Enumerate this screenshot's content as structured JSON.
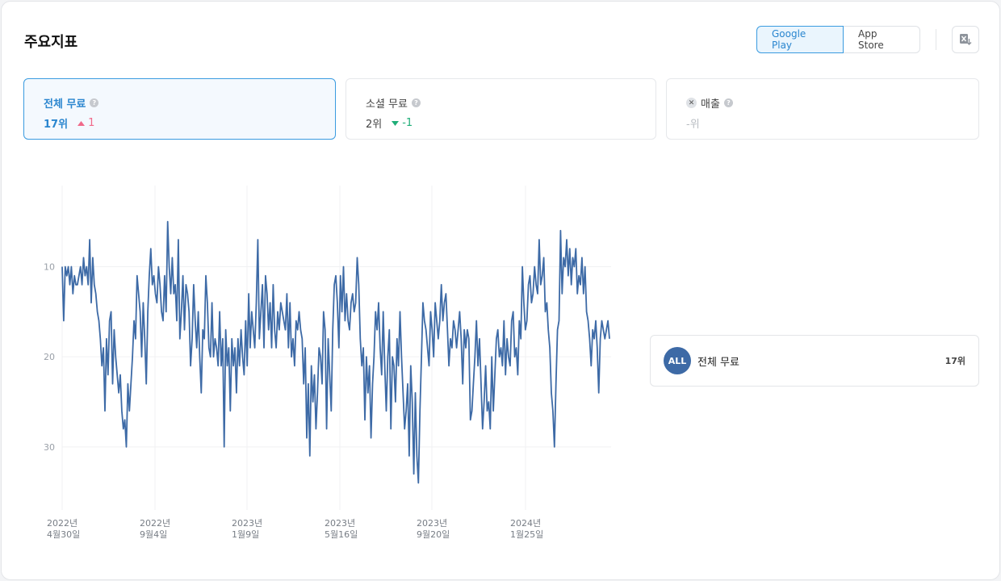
{
  "header": {
    "title": "주요지표",
    "stores": [
      "Google Play",
      "App Store"
    ],
    "export_icon": "excel-download-icon"
  },
  "cards": [
    {
      "label": "전체 무료",
      "rank": "17위",
      "delta": "1",
      "direction": "up"
    },
    {
      "label": "소셜 무료",
      "rank": "2위",
      "delta": "-1",
      "direction": "down"
    },
    {
      "label": "매출",
      "rank": "-위",
      "delta": "",
      "direction": "none"
    }
  ],
  "legend": {
    "badge": "ALL",
    "name": "전체 무료",
    "value": "17위"
  },
  "colors": {
    "line": "#3d6aa6",
    "accent": "#2a86cf",
    "up": "#f06a8a",
    "down": "#1fae78"
  },
  "chart_data": {
    "type": "line",
    "y_inverted": true,
    "ylim": [
      1,
      37
    ],
    "yticks": [
      "10",
      "20",
      "30"
    ],
    "xticks": [
      {
        "year": "2022년",
        "day": "4월30일"
      },
      {
        "year": "2022년",
        "day": "9월4일"
      },
      {
        "year": "2023년",
        "day": "1월9일"
      },
      {
        "year": "2023년",
        "day": "5월16일"
      },
      {
        "year": "2023년",
        "day": "9월20일"
      },
      {
        "year": "2024년",
        "day": "1월25일"
      }
    ],
    "series": [
      {
        "values": [
          10,
          16,
          10,
          11,
          10,
          12,
          10,
          13,
          11,
          12,
          12,
          11,
          10,
          12,
          9,
          11,
          10,
          12,
          7,
          14,
          9,
          12,
          13,
          15,
          16,
          18,
          21,
          19,
          26,
          18,
          22,
          16,
          15,
          23,
          17,
          20,
          22,
          24,
          22,
          26,
          28,
          27,
          30,
          23,
          26,
          23,
          20,
          16,
          18,
          11,
          13,
          15,
          20,
          14,
          18,
          23,
          15,
          11,
          8,
          12,
          11,
          13,
          14,
          10,
          12,
          15,
          16,
          11,
          15,
          5,
          10,
          13,
          9,
          13,
          12,
          16,
          7,
          18,
          15,
          11,
          17,
          12,
          13,
          15,
          21,
          18,
          12,
          16,
          19,
          15,
          20,
          24,
          17,
          18,
          11,
          14,
          19,
          20,
          14,
          20,
          18,
          19,
          21,
          15,
          21,
          18,
          30,
          17,
          21,
          19,
          26,
          18,
          21,
          19,
          24,
          18,
          21,
          17,
          20,
          22,
          16,
          21,
          13,
          19,
          15,
          17,
          19,
          14,
          7,
          18,
          15,
          12,
          19,
          11,
          13,
          17,
          14,
          19,
          12,
          17,
          19,
          15,
          17,
          14,
          15,
          16,
          17,
          13,
          19,
          14,
          20,
          18,
          21,
          16,
          17,
          15,
          17,
          18,
          23,
          19,
          29,
          23,
          31,
          21,
          25,
          22,
          28,
          24,
          19,
          20,
          23,
          15,
          17,
          28,
          18,
          22,
          26,
          17,
          12,
          11,
          14,
          19,
          11,
          15,
          10,
          16,
          13,
          16,
          17,
          14,
          13,
          15,
          14,
          9,
          12,
          18,
          21,
          19,
          27,
          20,
          24,
          21,
          29,
          23,
          20,
          15,
          17,
          14,
          19,
          22,
          15,
          21,
          26,
          20,
          17,
          28,
          20,
          21,
          25,
          18,
          21,
          15,
          20,
          24,
          28,
          26,
          23,
          31,
          21,
          25,
          33,
          24,
          31,
          34,
          26,
          20,
          14,
          16,
          17,
          19,
          21,
          15,
          17,
          20,
          14,
          16,
          18,
          16,
          12,
          16,
          14,
          13,
          17,
          21,
          18,
          19,
          16,
          17,
          19,
          17,
          15,
          18,
          23,
          17,
          19,
          17,
          18,
          27,
          26,
          23,
          20,
          16,
          21,
          18,
          23,
          28,
          25,
          21,
          26,
          25,
          28,
          20,
          26,
          22,
          18,
          17,
          20,
          19,
          21,
          16,
          22,
          18,
          20,
          21,
          16,
          15,
          20,
          19,
          22,
          16,
          18,
          10,
          14,
          17,
          16,
          12,
          11,
          14,
          13,
          10,
          12,
          13,
          7,
          12,
          11,
          9,
          15,
          14,
          17,
          19,
          24,
          26,
          30,
          23,
          17,
          16,
          6,
          13,
          9,
          10,
          7,
          11,
          8,
          12,
          9,
          10,
          8,
          13,
          11,
          12,
          9,
          13,
          10,
          15,
          16,
          18,
          21,
          17,
          18,
          16,
          19,
          24,
          18,
          16,
          17,
          18,
          17,
          16,
          18
        ]
      }
    ]
  }
}
